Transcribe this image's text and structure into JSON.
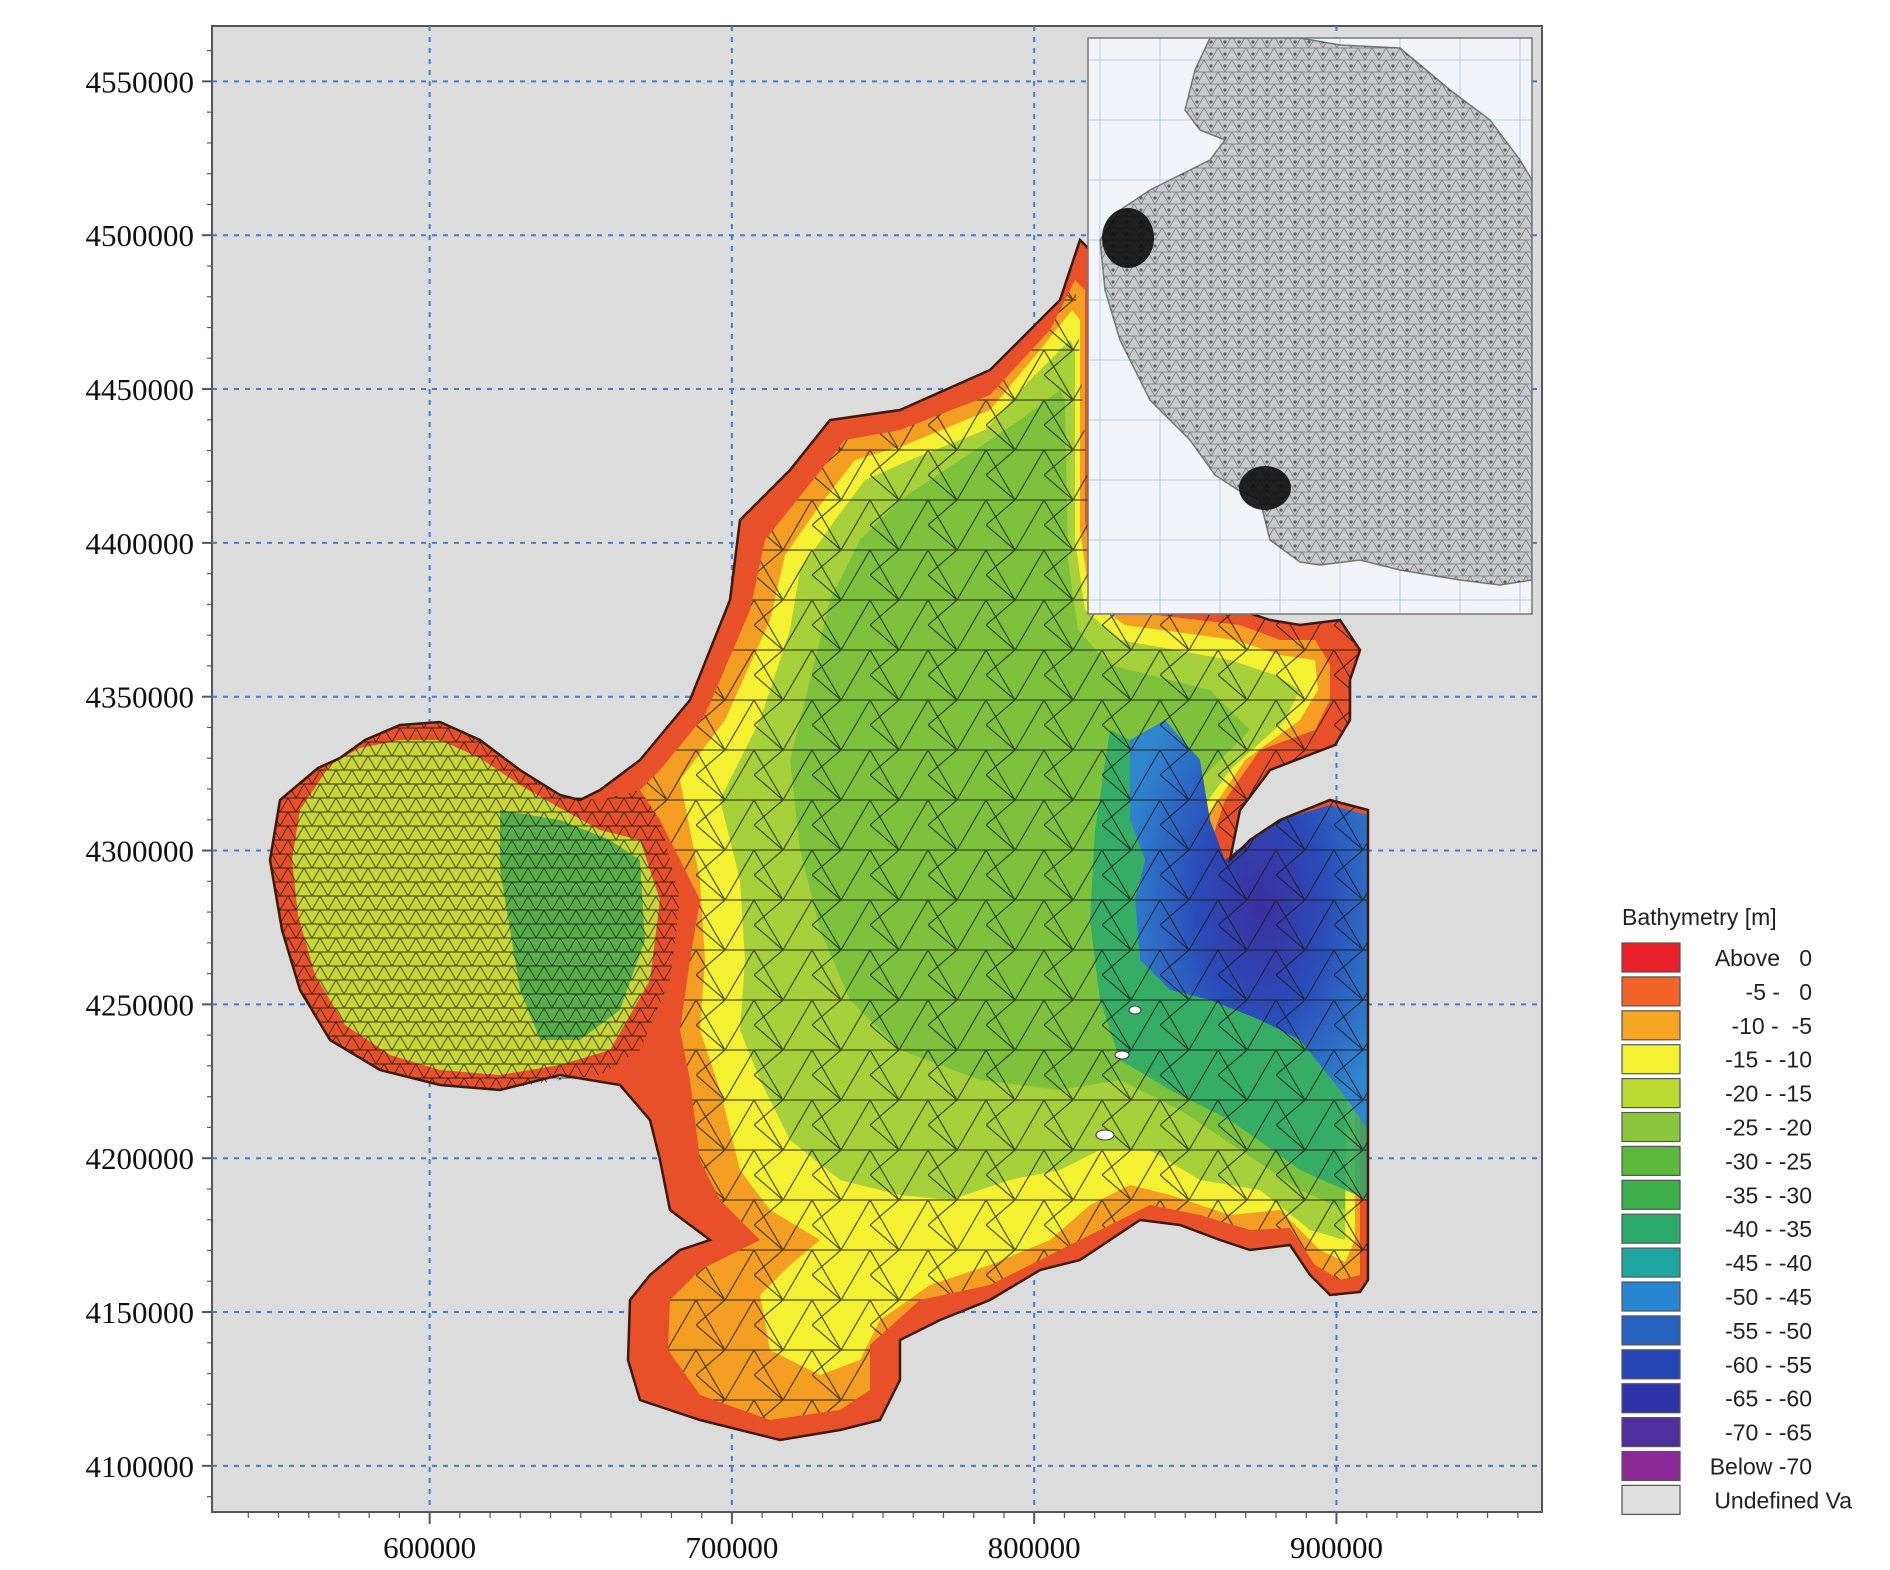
{
  "map": {
    "x_axis": {
      "ticks": [
        600000,
        700000,
        800000,
        900000
      ],
      "range": [
        528000,
        968000
      ]
    },
    "y_axis": {
      "ticks": [
        4550000,
        4500000,
        4450000,
        4400000,
        4350000,
        4300000,
        4250000,
        4200000,
        4150000,
        4100000
      ],
      "range": [
        4085000,
        4568000
      ]
    },
    "grid": true,
    "inset": {
      "type": "mesh-overview",
      "location": "top-right"
    }
  },
  "legend": {
    "title": "Bathymetry [m]",
    "items": [
      {
        "label": "Above   0",
        "color": "#e8202a"
      },
      {
        "label": "-5 -   0",
        "color": "#f06428"
      },
      {
        "label": "-10 -  -5",
        "color": "#f5a623"
      },
      {
        "label": "-15 - -10",
        "color": "#f4f032"
      },
      {
        "label": "-20 - -15",
        "color": "#bcd933"
      },
      {
        "label": "-25 - -20",
        "color": "#8cc63f"
      },
      {
        "label": "-30 - -25",
        "color": "#5db93c"
      },
      {
        "label": "-35 - -30",
        "color": "#3cae4a"
      },
      {
        "label": "-40 - -35",
        "color": "#2aa96b"
      },
      {
        "label": "-45 - -40",
        "color": "#1fa5a0"
      },
      {
        "label": "-50 - -45",
        "color": "#2786cf"
      },
      {
        "label": "-55 - -50",
        "color": "#2660bf"
      },
      {
        "label": "-60 - -55",
        "color": "#2645b5"
      },
      {
        "label": "-65 - -60",
        "color": "#2f35a8"
      },
      {
        "label": "-70 - -65",
        "color": "#4f2f9e"
      },
      {
        "label": "Below -70",
        "color": "#8b2a96"
      },
      {
        "label": "Undefined Va",
        "color": "#e0e0e0"
      }
    ]
  }
}
